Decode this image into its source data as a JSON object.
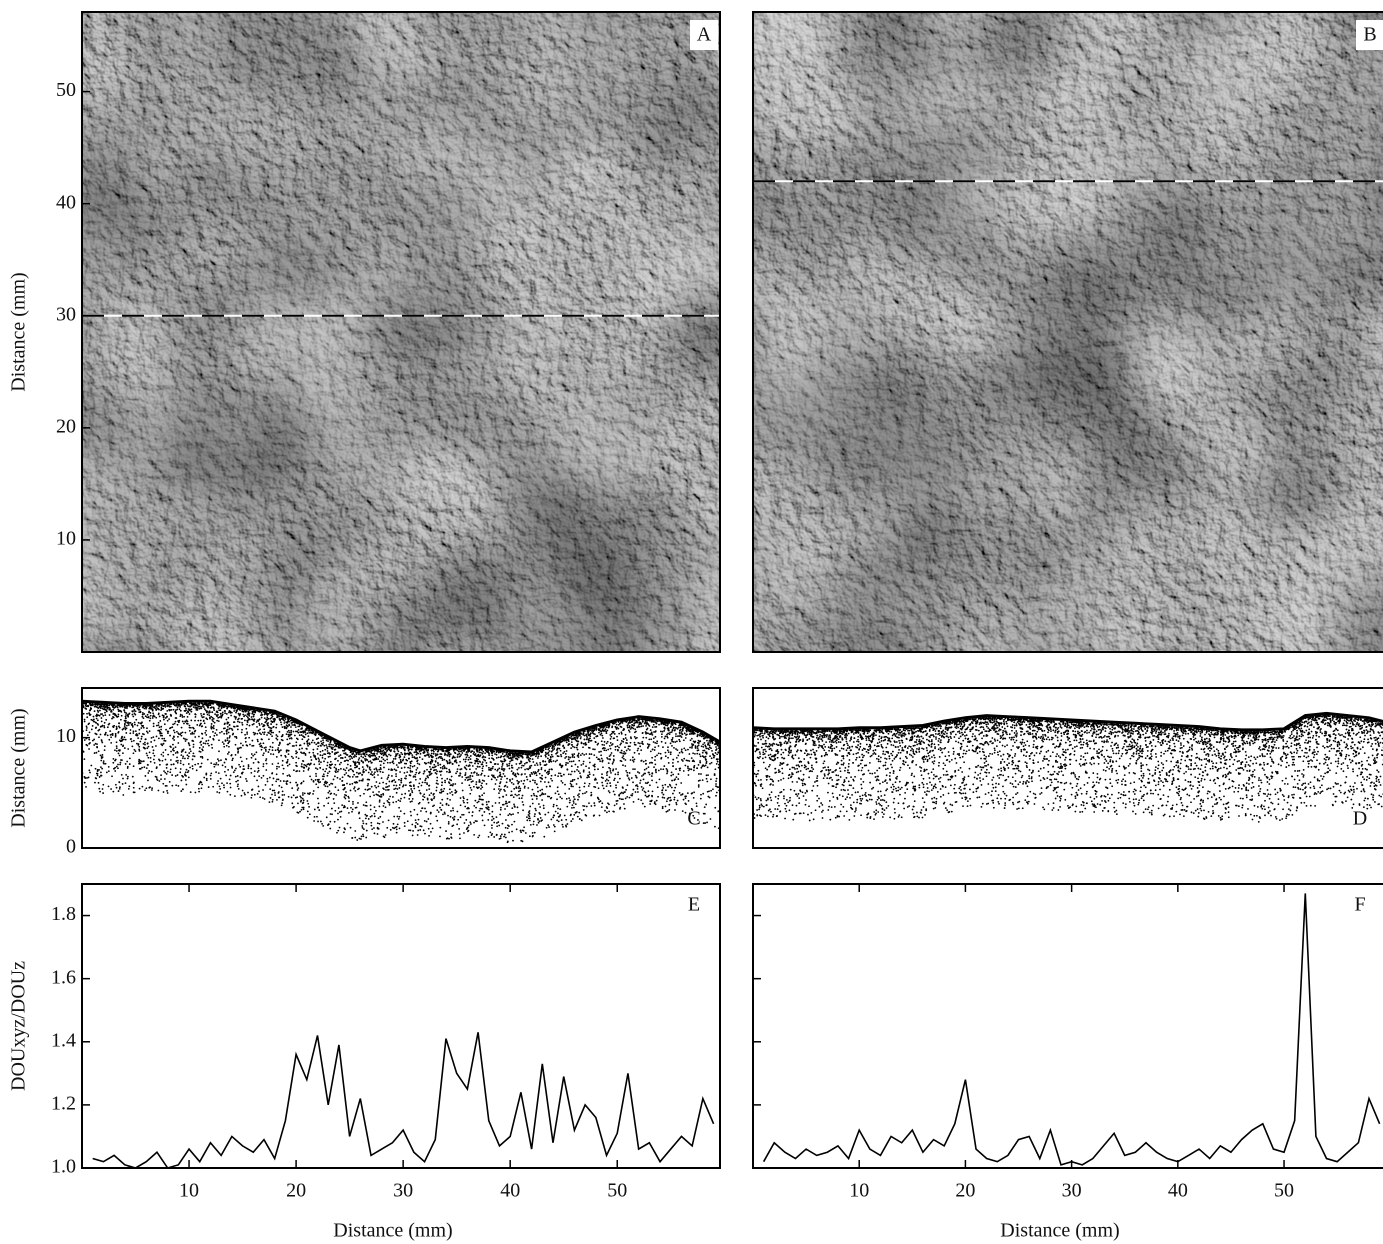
{
  "chart_data": [
    {
      "type": "image",
      "label": "A",
      "ylabel": "Distance (mm)",
      "xlim": [
        0,
        59.6
      ],
      "ylim": [
        0,
        57.1
      ],
      "yticks": [
        10,
        20,
        30,
        40,
        50
      ],
      "profile_y": 30
    },
    {
      "type": "image",
      "label": "B",
      "xlim": [
        0,
        59.6
      ],
      "ylim": [
        0,
        57.1
      ],
      "profile_y": 42
    },
    {
      "type": "profile",
      "label": "C",
      "ylabel": "Distance (mm)",
      "xlim": [
        0,
        59.6
      ],
      "ylim": [
        0,
        14.5
      ],
      "yticks": [
        0,
        10
      ],
      "x": [
        0,
        2,
        4,
        6,
        8,
        10,
        12,
        14,
        16,
        18,
        20,
        22,
        24,
        25,
        26,
        28,
        30,
        32,
        34,
        36,
        38,
        40,
        42,
        44,
        46,
        48,
        50,
        52,
        54,
        56,
        58,
        59.6
      ],
      "values": [
        13.3,
        13.2,
        13.1,
        13.1,
        13.2,
        13.3,
        13.3,
        13.0,
        12.7,
        12.4,
        11.6,
        10.6,
        9.6,
        9.1,
        8.8,
        9.3,
        9.4,
        9.2,
        9.1,
        9.2,
        9.1,
        8.8,
        8.7,
        9.6,
        10.5,
        11.1,
        11.6,
        11.9,
        11.7,
        11.4,
        10.5,
        9.6
      ]
    },
    {
      "type": "profile",
      "label": "D",
      "xlim": [
        0,
        59.6
      ],
      "ylim": [
        0,
        14.5
      ],
      "x": [
        0,
        2,
        4,
        6,
        8,
        10,
        12,
        14,
        16,
        18,
        20,
        22,
        24,
        26,
        28,
        30,
        32,
        34,
        36,
        38,
        40,
        42,
        44,
        46,
        48,
        50,
        52,
        54,
        56,
        58,
        59.6
      ],
      "values": [
        10.9,
        10.8,
        10.8,
        10.8,
        10.8,
        10.9,
        10.9,
        11.0,
        11.1,
        11.5,
        11.8,
        12.0,
        11.9,
        11.8,
        11.7,
        11.6,
        11.5,
        11.4,
        11.3,
        11.2,
        11.1,
        11.0,
        10.8,
        10.7,
        10.7,
        10.8,
        12.0,
        12.2,
        12.0,
        11.8,
        11.4
      ]
    },
    {
      "type": "line",
      "label": "E",
      "ylabel": "DOUxyz/DOUz",
      "xlabel": "Distance (mm)",
      "xlim": [
        0,
        59.6
      ],
      "ylim": [
        1,
        1.9
      ],
      "xticks": [
        10,
        20,
        30,
        40,
        50
      ],
      "yticks": [
        {
          "value": 1,
          "label": "1.0"
        },
        1.2,
        1.4,
        1.6,
        1.8
      ],
      "x": [
        1,
        2,
        3,
        4,
        5,
        6,
        7,
        8,
        9,
        10,
        11,
        12,
        13,
        14,
        15,
        16,
        17,
        18,
        19,
        20,
        21,
        22,
        23,
        24,
        25,
        26,
        27,
        28,
        29,
        30,
        31,
        32,
        33,
        34,
        35,
        36,
        37,
        38,
        39,
        40,
        41,
        42,
        43,
        44,
        45,
        46,
        47,
        48,
        49,
        50,
        51,
        52,
        53,
        54,
        55,
        56,
        57,
        58,
        59
      ],
      "values": [
        1.03,
        1.02,
        1.04,
        1.01,
        1.0,
        1.02,
        1.05,
        1.0,
        1.01,
        1.06,
        1.02,
        1.08,
        1.04,
        1.1,
        1.07,
        1.05,
        1.09,
        1.03,
        1.15,
        1.36,
        1.28,
        1.42,
        1.2,
        1.39,
        1.1,
        1.22,
        1.04,
        1.06,
        1.08,
        1.12,
        1.05,
        1.02,
        1.09,
        1.41,
        1.3,
        1.25,
        1.43,
        1.15,
        1.07,
        1.1,
        1.24,
        1.06,
        1.33,
        1.08,
        1.29,
        1.12,
        1.2,
        1.16,
        1.04,
        1.11,
        1.3,
        1.06,
        1.08,
        1.02,
        1.06,
        1.1,
        1.07,
        1.22,
        1.14
      ]
    },
    {
      "type": "line",
      "label": "F",
      "xlabel": "Distance (mm)",
      "xlim": [
        0,
        59.6
      ],
      "ylim": [
        1,
        1.9
      ],
      "xticks": [
        10,
        20,
        30,
        40,
        50
      ],
      "x": [
        1,
        2,
        3,
        4,
        5,
        6,
        7,
        8,
        9,
        10,
        11,
        12,
        13,
        14,
        15,
        16,
        17,
        18,
        19,
        20,
        21,
        22,
        23,
        24,
        25,
        26,
        27,
        28,
        29,
        30,
        31,
        32,
        33,
        34,
        35,
        36,
        37,
        38,
        39,
        40,
        41,
        42,
        43,
        44,
        45,
        46,
        47,
        48,
        49,
        50,
        51,
        52,
        53,
        54,
        55,
        56,
        57,
        58,
        59
      ],
      "values": [
        1.02,
        1.08,
        1.05,
        1.03,
        1.06,
        1.04,
        1.05,
        1.07,
        1.03,
        1.12,
        1.06,
        1.04,
        1.1,
        1.08,
        1.12,
        1.05,
        1.09,
        1.07,
        1.14,
        1.28,
        1.06,
        1.03,
        1.02,
        1.04,
        1.09,
        1.1,
        1.03,
        1.12,
        1.01,
        1.02,
        1.01,
        1.03,
        1.07,
        1.11,
        1.04,
        1.05,
        1.08,
        1.05,
        1.03,
        1.02,
        1.04,
        1.06,
        1.03,
        1.07,
        1.05,
        1.09,
        1.12,
        1.14,
        1.06,
        1.05,
        1.15,
        1.87,
        1.1,
        1.03,
        1.02,
        1.05,
        1.08,
        1.22,
        1.14
      ]
    }
  ]
}
